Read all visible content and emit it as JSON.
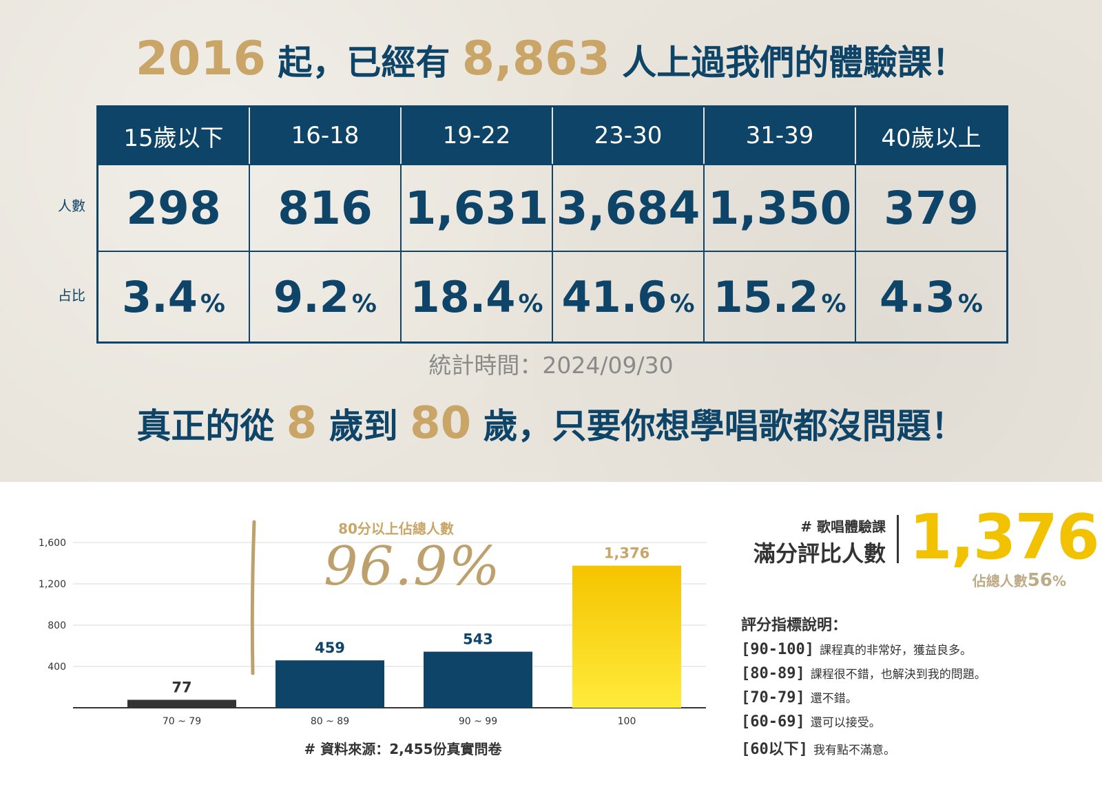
{
  "headline1": {
    "prefix": "2016",
    "mid": " 起，已經有 ",
    "count": "8,863",
    "suffix": " 人上過我們的體驗課！"
  },
  "table": {
    "headers": [
      "15歲以下",
      "16-18",
      "19-22",
      "23-30",
      "31-39",
      "40歲以上"
    ],
    "row_labels": {
      "count": "人數",
      "percent": "占比"
    },
    "counts": [
      "298",
      "816",
      "1,631",
      "3,684",
      "1,350",
      "379"
    ],
    "percents": [
      "3.4",
      "9.2",
      "18.4",
      "41.6",
      "15.2",
      "4.3"
    ],
    "percent_sign": "%"
  },
  "stat_date": "統計時間：2024/09/30",
  "headline2": {
    "prefix": "真正的從 ",
    "age_from": "8",
    "mid": " 歲到 ",
    "age_to": "80",
    "suffix": " 歲，只要你想學唱歌都沒問題！"
  },
  "chart_data": {
    "type": "bar",
    "categories": [
      "70 ~ 79",
      "80 ~ 89",
      "90 ~ 99",
      "100"
    ],
    "values": [
      77,
      459,
      543,
      1376
    ],
    "value_labels": [
      "77",
      "459",
      "543",
      "1,376"
    ],
    "ylim": [
      0,
      1600
    ],
    "yticks": [
      400,
      800,
      1200,
      1600
    ],
    "ytick_labels": [
      "400",
      "800",
      "1,200",
      "1,600"
    ],
    "grid": true,
    "colors": [
      "#333333",
      "#0d4468",
      "#0d4468",
      "#f5c800"
    ],
    "caption": "80分以上佔總人數",
    "highlight_percent": "96.9%",
    "source": "# 資料來源：2,455份真實問卷"
  },
  "side": {
    "tag": "# 歌唱體驗課",
    "title": "滿分評比人數",
    "count": "1,376",
    "share_prefix": "佔總人數",
    "share_value": "56",
    "share_sign": "%"
  },
  "legend": {
    "title": "評分指標說明：",
    "items": [
      {
        "range": "[90-100]",
        "desc": "課程真的非常好，獲益良多。"
      },
      {
        "range": "[80-89]",
        "desc": "課程很不錯，也解決到我的問題。"
      },
      {
        "range": "[70-79]",
        "desc": "還不錯。"
      },
      {
        "range": "[60-69]",
        "desc": "還可以接受。"
      },
      {
        "range": "[60以下]",
        "desc": "我有點不滿意。"
      }
    ]
  }
}
